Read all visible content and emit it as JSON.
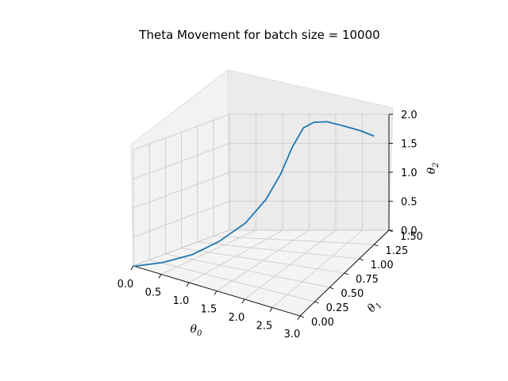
{
  "chart_data": {
    "type": "line",
    "title": "Theta Movement for batch size = 10000",
    "axes": {
      "x": {
        "label": "θ0",
        "label_base": "θ",
        "label_sub": "0",
        "ticks": [
          "0.0",
          "0.5",
          "1.0",
          "1.5",
          "2.0",
          "2.5",
          "3.0"
        ],
        "range": [
          0,
          3.0
        ]
      },
      "y": {
        "label": "θ1",
        "label_base": "θ",
        "label_sub": "1",
        "ticks": [
          "0.00",
          "0.25",
          "0.50",
          "0.75",
          "1.00",
          "1.25",
          "1.50"
        ],
        "range": [
          0,
          1.5
        ]
      },
      "z": {
        "label": "θ2",
        "label_base": "θ",
        "label_sub": "2",
        "ticks": [
          "0.0",
          "0.5",
          "1.0",
          "1.5",
          "2.0"
        ],
        "range": [
          0,
          2.0
        ]
      }
    },
    "grid": true,
    "projection": "3d",
    "series": [
      {
        "color": "#1f77b4",
        "points": [
          {
            "x": 0.02,
            "y": 0.0,
            "z": 0.0
          },
          {
            "x": 0.3,
            "y": 0.2,
            "z": 0.05
          },
          {
            "x": 0.55,
            "y": 0.45,
            "z": 0.12
          },
          {
            "x": 0.75,
            "y": 0.7,
            "z": 0.25
          },
          {
            "x": 0.95,
            "y": 0.95,
            "z": 0.45
          },
          {
            "x": 1.1,
            "y": 1.15,
            "z": 0.75
          },
          {
            "x": 1.2,
            "y": 1.3,
            "z": 1.1
          },
          {
            "x": 1.3,
            "y": 1.4,
            "z": 1.5
          },
          {
            "x": 1.45,
            "y": 1.45,
            "z": 1.8
          },
          {
            "x": 1.65,
            "y": 1.45,
            "z": 1.9
          },
          {
            "x": 1.95,
            "y": 1.4,
            "z": 1.95
          },
          {
            "x": 2.3,
            "y": 1.35,
            "z": 1.93
          },
          {
            "x": 2.7,
            "y": 1.3,
            "z": 1.9
          },
          {
            "x": 3.0,
            "y": 1.25,
            "z": 1.87
          }
        ]
      }
    ]
  }
}
